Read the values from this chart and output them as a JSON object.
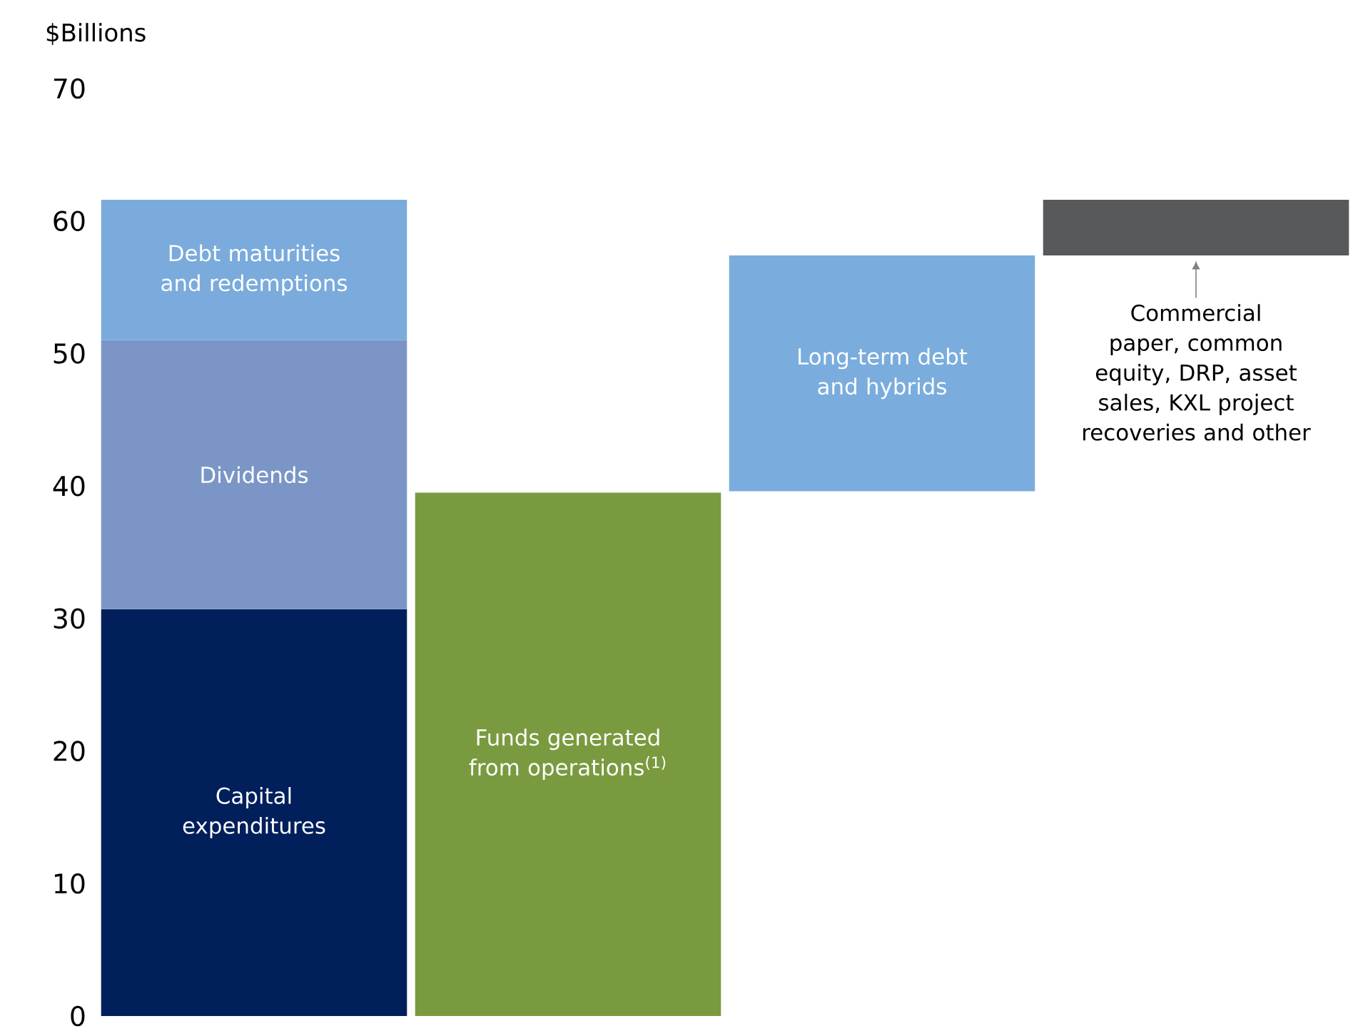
{
  "chart_data": {
    "type": "bar",
    "stacked": true,
    "ylabel": "$Billions",
    "categories": [
      null,
      null,
      null,
      null
    ],
    "ylim": [
      0,
      70
    ],
    "yticks": [
      0,
      10,
      20,
      30,
      40,
      50,
      60,
      70
    ],
    "series": [
      {
        "colors": [
          "#001f5b",
          "#7a9a3f",
          "#7aaddd",
          "#58595b"
        ],
        "values": [
          30.7,
          39.5,
          17.8,
          4.2
        ],
        "base": [
          0,
          0,
          39.6,
          57.4
        ]
      },
      {
        "name": "Dividends",
        "color": "#7b96c6",
        "values": [
          20.3,
          null,
          null,
          null
        ]
      },
      {
        "name": "Debt maturities and redemptions",
        "color": "#7aabdc",
        "values": [
          10.6,
          null,
          null,
          null
        ]
      }
    ],
    "annotations": [
      "Capital expenditures",
      "Funds generated from operations$^{(1)}$",
      "Long-term debt and hybrids",
      "Commercial paper, common equity, DRP, asset sales, KXL project recoveries and other"
    ]
  }
}
